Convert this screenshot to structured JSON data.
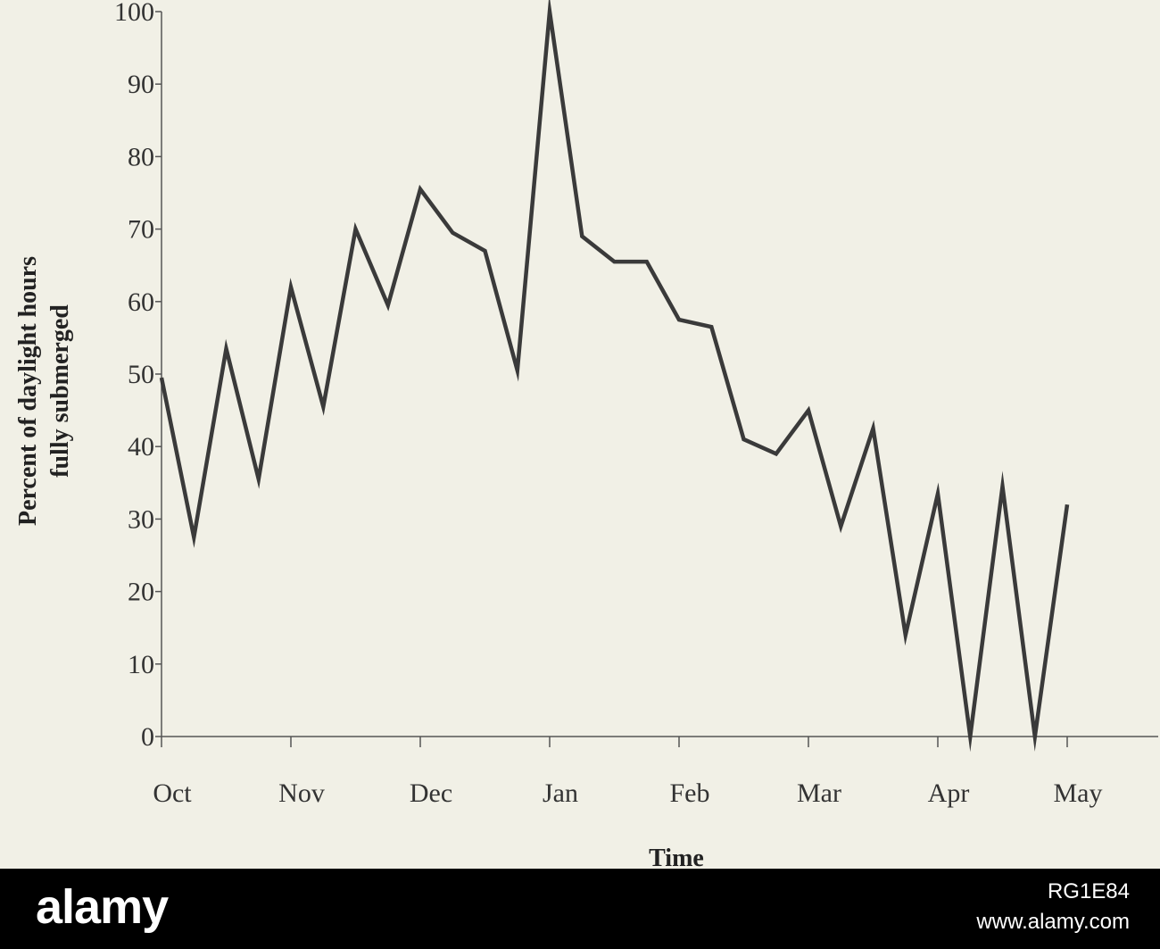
{
  "chart_data": {
    "type": "line",
    "title": "",
    "xlabel": "Time",
    "ylabel": "Percent of daylight hours",
    "ylabel2": "fully submerged",
    "ylim": [
      0,
      100
    ],
    "yticks": [
      0,
      10,
      20,
      30,
      40,
      50,
      60,
      70,
      80,
      90,
      100
    ],
    "xticks": [
      "Oct",
      "Nov",
      "Dec",
      "Jan",
      "Feb",
      "Mar",
      "Apr",
      "May"
    ],
    "grid": false,
    "line_color": "#3a3a3a",
    "series": [
      {
        "x": [
          0,
          0.25,
          0.5,
          0.75,
          1.0,
          1.25,
          1.5,
          1.75,
          2.0,
          2.25,
          2.5,
          2.75,
          3.0,
          3.25,
          3.5,
          3.75,
          4.0,
          4.25,
          4.5,
          4.75,
          5.0,
          5.25,
          5.5,
          5.75,
          6.0,
          6.25,
          6.5,
          6.75,
          7.0
        ],
        "values": [
          49.5,
          27.5,
          53.5,
          35.5,
          62,
          45.5,
          70,
          59.5,
          75.5,
          69.5,
          67,
          50.5,
          100,
          69,
          65.5,
          65.5,
          57.5,
          56.5,
          41,
          39,
          45,
          29,
          42.5,
          14,
          33.5,
          0,
          34.5,
          0,
          32
        ]
      }
    ]
  },
  "watermark": {
    "brand": "alamy",
    "image_id": "RG1E84",
    "url": "www.alamy.com"
  }
}
